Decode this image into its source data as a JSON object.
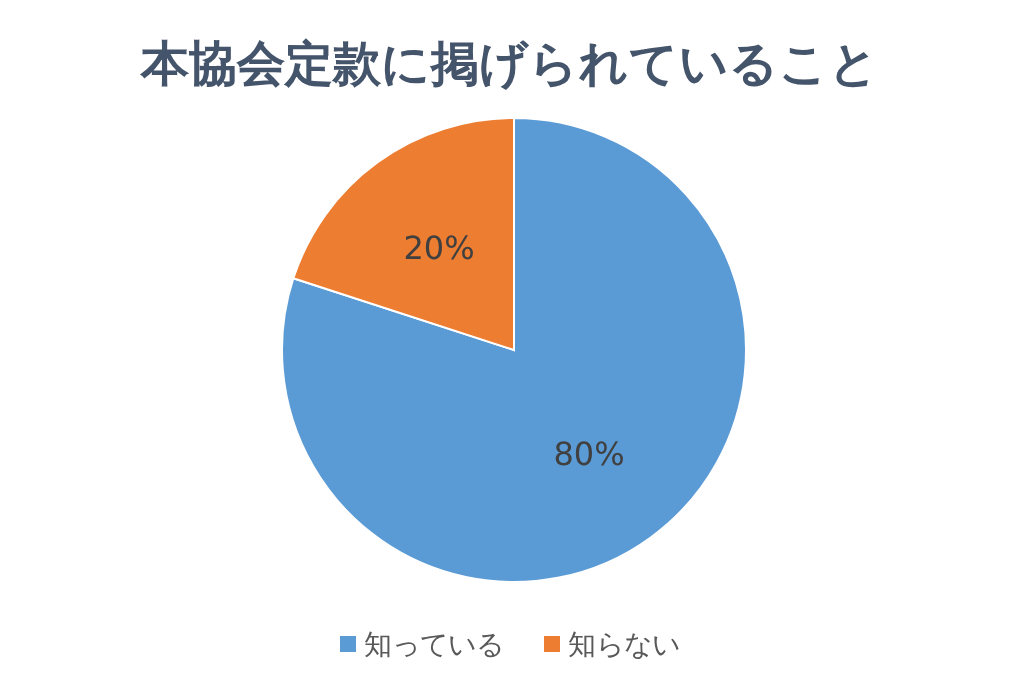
{
  "chart_data": {
    "type": "pie",
    "title": "本協会定款に掲げられていること",
    "categories": [
      "知っている",
      "知らない"
    ],
    "values": [
      80,
      20
    ],
    "colors": [
      "#5b9bd5",
      "#ed7d31"
    ],
    "value_labels": [
      "80%",
      "20%"
    ],
    "legend": "bottom"
  }
}
